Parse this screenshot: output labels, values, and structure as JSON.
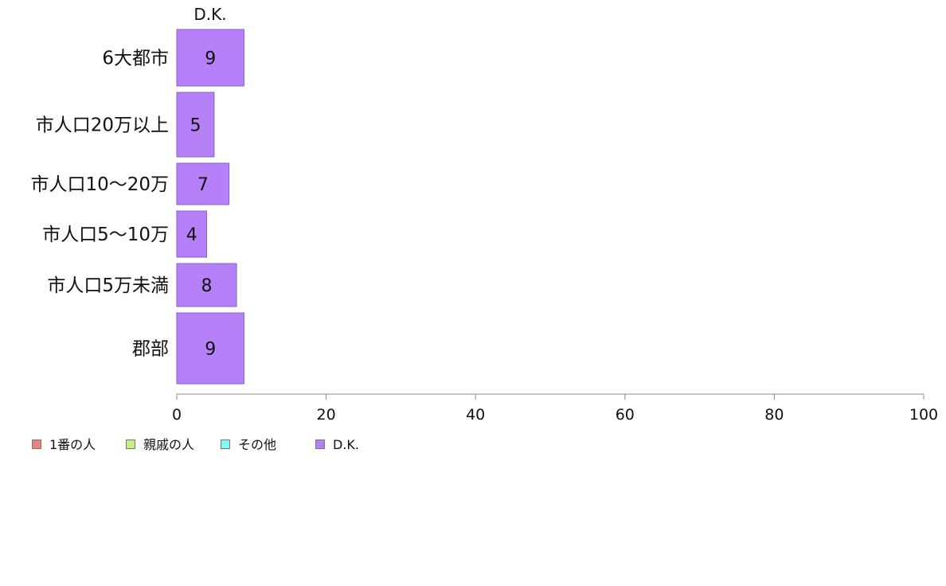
{
  "chart_data": {
    "type": "bar",
    "orientation": "horizontal",
    "stacked": true,
    "categories": [
      "6大都市",
      "市人口20万以上",
      "市人口10～20万",
      "市人口5～10万",
      "市人口5万未満",
      "郡部"
    ],
    "series": [
      {
        "name": "1番の人",
        "color": "#f08080",
        "values": [
          0,
          0,
          0,
          0,
          0,
          0
        ]
      },
      {
        "name": "親戚の人",
        "color": "#c0f080",
        "values": [
          0,
          0,
          0,
          0,
          0,
          0
        ]
      },
      {
        "name": "その他",
        "color": "#80f8f8",
        "values": [
          0,
          0,
          0,
          0,
          0,
          0
        ]
      },
      {
        "name": "D.K.",
        "color": "#b580f8",
        "values": [
          9,
          5,
          7,
          4,
          8,
          9
        ]
      }
    ],
    "data_labels": [
      "9",
      "5",
      "7",
      "4",
      "8",
      "9"
    ],
    "top_label": "D.K.",
    "xlim": [
      0,
      100
    ],
    "xticks": [
      0,
      20,
      40,
      60,
      80,
      100
    ],
    "xlabel": "",
    "ylabel": "",
    "grid": false,
    "legend": "bottom-left"
  },
  "legend": [
    {
      "label": "1番の人",
      "color": "#f08080"
    },
    {
      "label": "親戚の人",
      "color": "#c0f080"
    },
    {
      "label": "その他",
      "color": "#80f8f8"
    },
    {
      "label": "D.K.",
      "color": "#b580f8"
    }
  ]
}
